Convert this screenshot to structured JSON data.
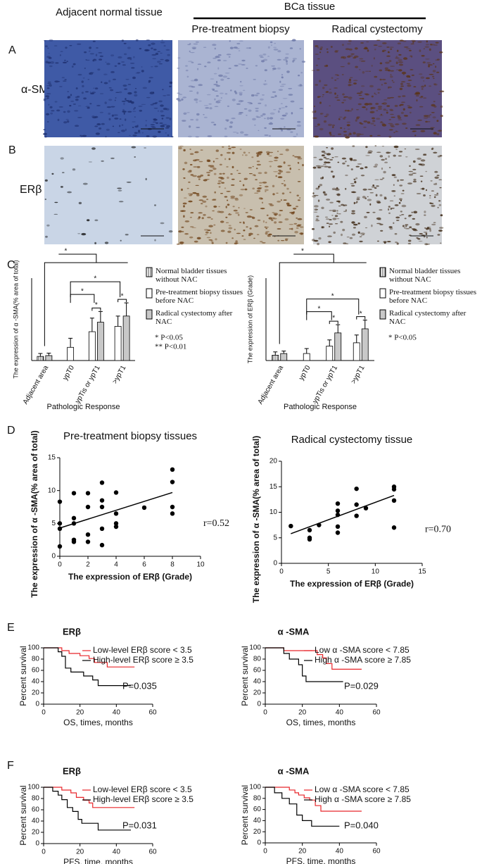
{
  "figure": {
    "header": {
      "adjacent": "Adjacent normal tissue",
      "bca": "BCa tissue",
      "pre": "Pre-treatment biopsy",
      "radical": "Radical cystectomy"
    },
    "panels": [
      "A",
      "B",
      "C",
      "D",
      "E",
      "F"
    ],
    "rows": [
      "α-SMA",
      "ERβ"
    ]
  },
  "chart_data": [
    {
      "type": "bar",
      "ylabel": "The expression of α -SMA(% area of total)",
      "xlabel": "Pathologic Response",
      "categories": [
        "Adjacent area",
        "ypT0",
        "ypTis or ypT1",
        ">ypT1"
      ],
      "ylim": [
        0,
        20
      ],
      "sig": "*",
      "notes": [
        "* P<0.05",
        "** P<0.01"
      ],
      "series": [
        {
          "name": "Normal bladder tissues without NAC",
          "color": "#ffffff",
          "pattern": "hatch",
          "values": [
            1.0,
            null,
            null,
            null
          ],
          "errors": [
            0.7,
            null,
            null,
            null
          ]
        },
        {
          "name": "Pre-treatment biopsy tissues before NAC",
          "color": "#ffffff",
          "values": [
            null,
            3.2,
            7.0,
            8.3
          ],
          "errors": [
            null,
            2.2,
            3.3,
            2.5
          ]
        },
        {
          "name": "Radical cystectomy after NAC",
          "color": "#c8c8c8",
          "values": [
            1.2,
            null,
            9.3,
            10.8
          ],
          "errors": [
            0.6,
            null,
            2.6,
            3.2
          ]
        }
      ]
    },
    {
      "type": "bar",
      "ylabel": "The expression of ERβ (Grade)",
      "xlabel": "Pathologic Response",
      "categories": [
        "Adjacent area",
        "ypT0",
        "ypTis or ypT1",
        ">ypT1"
      ],
      "ylim": [
        0,
        20
      ],
      "sig": "*",
      "notes": [
        "* P<0.05"
      ],
      "series": [
        {
          "name": "Normal bladder tissues without NAC",
          "color": "#ffffff",
          "pattern": "hatch",
          "values": [
            1.3,
            null,
            null,
            null
          ],
          "errors": [
            0.8,
            null,
            null,
            null
          ]
        },
        {
          "name": "Pre-treatment biopsy tissues before NAC",
          "color": "#ffffff",
          "values": [
            null,
            1.7,
            3.5,
            4.3
          ],
          "errors": [
            null,
            1.2,
            1.5,
            1.9
          ]
        },
        {
          "name": "Radical cystectomy after NAC",
          "color": "#c8c8c8",
          "values": [
            1.7,
            null,
            6.7,
            7.7
          ],
          "errors": [
            0.6,
            null,
            2.0,
            2.1
          ]
        }
      ]
    },
    {
      "type": "scatter",
      "title": "Pre-treatment biopsy tissues",
      "xlabel": "The expression of ERβ (Grade)",
      "ylabel": "The expression of α -SMA(% area of total)",
      "annotation": "r=0.52",
      "xlim": [
        0,
        10
      ],
      "xticks": [
        0,
        2,
        4,
        6,
        8,
        10
      ],
      "ylim": [
        0,
        15
      ],
      "yticks": [
        0,
        5,
        10,
        15
      ],
      "color": "#000000",
      "x": [
        0,
        0,
        0,
        0,
        1,
        1,
        1,
        1,
        1,
        2,
        2,
        2,
        2,
        3,
        3,
        3,
        3,
        3,
        4,
        4,
        4,
        4,
        6,
        8,
        8,
        8,
        8
      ],
      "values": [
        8.3,
        5,
        4.2,
        1.5,
        9.6,
        5.8,
        5,
        2.5,
        2.2,
        9.6,
        7.5,
        3.3,
        2.2,
        11.2,
        8.5,
        7.5,
        4.2,
        1.7,
        9.7,
        6.5,
        5,
        4.5,
        7.4,
        13.2,
        11.3,
        7.5,
        6.5
      ],
      "fit": {
        "x": [
          0,
          8
        ],
        "values": [
          4.3,
          9.7
        ]
      }
    },
    {
      "type": "scatter",
      "title": "Radical cystectomy tissue",
      "xlabel": "The expression of ERβ (Grade)",
      "ylabel": "The expression of α -SMA(% area of total)",
      "annotation": "r=0.70",
      "xlim": [
        0,
        15
      ],
      "xticks": [
        0,
        5,
        10,
        15
      ],
      "ylim": [
        0,
        20
      ],
      "yticks": [
        0,
        5,
        10,
        15,
        20
      ],
      "color": "#000000",
      "x": [
        1,
        3,
        3,
        3,
        4,
        6,
        6,
        6,
        6,
        6,
        8,
        8,
        8,
        9,
        12,
        12,
        12,
        12
      ],
      "values": [
        7.3,
        6.5,
        5,
        4.7,
        7.5,
        11.7,
        10.3,
        9.5,
        7.2,
        6,
        14.6,
        11.5,
        9.3,
        10.8,
        15,
        14.5,
        12.3,
        7
      ],
      "fit": {
        "x": [
          1,
          12
        ],
        "values": [
          5.8,
          13.3
        ]
      }
    },
    {
      "type": "survival",
      "title": "ERβ",
      "xlabel": "OS, times, months",
      "ylabel": "Percent survival",
      "annotation": "P=0.035",
      "xlim": [
        0,
        60
      ],
      "xticks": [
        0,
        20,
        40,
        60
      ],
      "ylim": [
        0,
        100
      ],
      "yticks": [
        0,
        20,
        40,
        60,
        80,
        100
      ],
      "series": [
        {
          "name": "Low-level ERβ  score < 3.5",
          "color": "#e8262a",
          "x": [
            0,
            10,
            14,
            20,
            25,
            28,
            35,
            50
          ],
          "values": [
            100,
            95,
            90,
            86,
            81,
            74,
            66,
            66
          ]
        },
        {
          "name": "High-level ERβ  score ≥ 3.5",
          "color": "#000000",
          "x": [
            0,
            8,
            10,
            12,
            15,
            22,
            27,
            30,
            48
          ],
          "values": [
            100,
            93,
            85,
            64,
            57,
            50,
            43,
            33,
            33
          ]
        }
      ]
    },
    {
      "type": "survival",
      "title": "α -SMA",
      "xlabel": "OS, times, months",
      "ylabel": "Percent survival",
      "annotation": "P=0.029",
      "xlim": [
        0,
        60
      ],
      "xticks": [
        0,
        20,
        40,
        60
      ],
      "ylim": [
        0,
        100
      ],
      "yticks": [
        0,
        20,
        40,
        60,
        80,
        100
      ],
      "series": [
        {
          "name": "Low α -SMA score < 7.85",
          "color": "#e8262a",
          "x": [
            0,
            10,
            28,
            31,
            33,
            36,
            52
          ],
          "values": [
            100,
            95,
            88,
            82,
            72,
            62,
            62
          ]
        },
        {
          "name": "High α -SMA score ≥ 7.85",
          "color": "#000000",
          "x": [
            0,
            10,
            13,
            18,
            20,
            22,
            42
          ],
          "values": [
            100,
            90,
            80,
            70,
            50,
            40,
            40
          ]
        }
      ]
    },
    {
      "type": "survival",
      "title": "ERβ",
      "xlabel": "PFS, time, months",
      "ylabel": "Percent survival",
      "annotation": "P=0.031",
      "xlim": [
        0,
        60
      ],
      "xticks": [
        0,
        20,
        40,
        60
      ],
      "ylim": [
        0,
        100
      ],
      "yticks": [
        0,
        20,
        40,
        60,
        80,
        100
      ],
      "series": [
        {
          "name": "Low-level ERβ  score < 3.5",
          "color": "#e8262a",
          "x": [
            0,
            10,
            15,
            18,
            22,
            25,
            27,
            50
          ],
          "values": [
            100,
            95,
            90,
            82,
            77,
            72,
            64,
            64
          ]
        },
        {
          "name": "High-level ERβ  score ≥ 3.5",
          "color": "#000000",
          "x": [
            0,
            5,
            8,
            10,
            13,
            16,
            19,
            21,
            30,
            48
          ],
          "values": [
            100,
            93,
            86,
            78,
            64,
            57,
            43,
            36,
            24,
            24
          ]
        }
      ]
    },
    {
      "type": "survival",
      "title": "α -SMA",
      "xlabel": "PFS, time, months",
      "ylabel": "Percent survival",
      "annotation": "P=0.040",
      "xlim": [
        0,
        60
      ],
      "xticks": [
        0,
        20,
        40,
        60
      ],
      "ylim": [
        0,
        100
      ],
      "yticks": [
        0,
        20,
        40,
        60,
        80,
        100
      ],
      "series": [
        {
          "name": "Low α -SMA score < 7.85",
          "color": "#e8262a",
          "x": [
            0,
            13,
            16,
            18,
            21,
            24,
            27,
            30,
            52
          ],
          "values": [
            100,
            95,
            90,
            86,
            81,
            77,
            67,
            57,
            57
          ]
        },
        {
          "name": "High α -SMA score ≥ 7.85",
          "color": "#000000",
          "x": [
            0,
            5,
            9,
            13,
            17,
            20,
            25,
            40
          ],
          "values": [
            100,
            90,
            80,
            70,
            50,
            40,
            30,
            30
          ]
        }
      ]
    }
  ]
}
